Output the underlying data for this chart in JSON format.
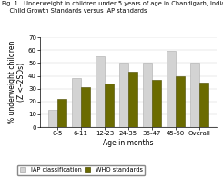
{
  "title_line1": "Fig. 1.  Underweight in children under 5 years of age in Chandigarh, India, using WHO",
  "title_line2": "    Child Growth Standards versus IAP standards",
  "categories": [
    "0-5",
    "6-11",
    "12-23",
    "24-35",
    "36-47",
    "45-60",
    "Overall"
  ],
  "iap_values": [
    13.5,
    38.5,
    55.5,
    50.0,
    50.0,
    59.5,
    50.0
  ],
  "who_values": [
    22.0,
    31.0,
    34.0,
    43.0,
    37.0,
    40.0,
    35.0
  ],
  "iap_color": "#d3d3d3",
  "who_color": "#6b6b00",
  "iap_edge": "#aaaaaa",
  "who_edge": "#4a4a00",
  "ylabel": "% underweight children\n(Z <–2SDs)",
  "xlabel": "Age in months",
  "ylim": [
    0,
    70
  ],
  "yticks": [
    0,
    10,
    20,
    30,
    40,
    50,
    60,
    70
  ],
  "legend_iap": "IAP classification",
  "legend_who": "WHO standards",
  "bar_width": 0.38,
  "title_fontsize": 4.8,
  "axis_label_fontsize": 5.5,
  "tick_fontsize": 5.0,
  "legend_fontsize": 4.8
}
